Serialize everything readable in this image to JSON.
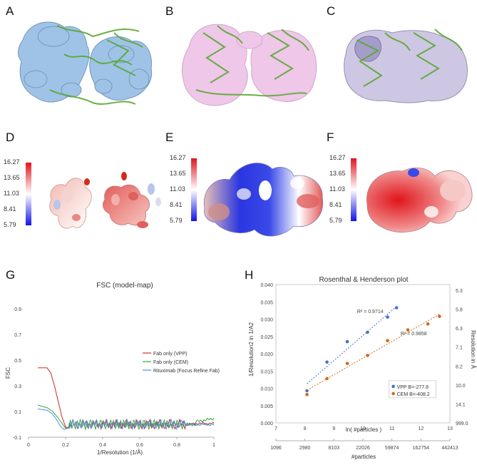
{
  "panels": {
    "a": "A",
    "b": "B",
    "c": "C",
    "d": "D",
    "e": "E",
    "f": "F",
    "g": "G",
    "h": "H"
  },
  "colorbar": {
    "ticks": [
      "16.27",
      "13.65",
      "11.03",
      "8.41",
      "5.79"
    ],
    "high_color": "#e0141c",
    "mid_color": "#ffffff",
    "low_color": "#1414e6"
  },
  "colors": {
    "map_blue": "#8fb9e3",
    "map_pink": "#e6a3dc",
    "map_lavender": "#b8b0d8",
    "ribbon_green": "#5aa832"
  },
  "chart_data": [
    {
      "type": "line",
      "title": "FSC (model-map)",
      "xlabel": "1/Resolution (1/Å)",
      "ylabel": "FSC",
      "xlim": [
        0,
        1
      ],
      "ylim": [
        -0.1,
        1.0
      ],
      "xticks": [
        "0",
        "0.2",
        "0.4",
        "0.6",
        "0.8",
        "1"
      ],
      "yticks": [
        "-0.1",
        "0.1",
        "0.3",
        "0.5",
        "0.7",
        "0.9"
      ],
      "legend_position": "right",
      "series": [
        {
          "name": "Fab only (VPP)",
          "color": "#d42a1e",
          "x": [
            0.05,
            0.1,
            0.12,
            0.14,
            0.16,
            0.18,
            0.2,
            0.22
          ],
          "y": [
            0.44,
            0.44,
            0.4,
            0.3,
            0.18,
            0.06,
            -0.02,
            -0.03
          ]
        },
        {
          "name": "Fab only (CEM)",
          "color": "#3aa63a",
          "x": [
            0.05,
            0.1,
            0.13,
            0.16,
            0.18,
            0.2,
            0.22
          ],
          "y": [
            0.15,
            0.13,
            0.1,
            0.05,
            0.01,
            -0.03,
            -0.02
          ]
        },
        {
          "name": "Rituximab (Focus Refine Fab)",
          "color": "#4a90e2",
          "x": [
            0.05,
            0.1,
            0.13,
            0.15,
            0.17,
            0.19,
            0.21
          ],
          "y": [
            0.12,
            0.11,
            0.08,
            0.04,
            -0.01,
            -0.04,
            -0.03
          ]
        }
      ]
    },
    {
      "type": "scatter",
      "title": "Rosenthal & Henderson plot",
      "xlabel": "ln( #particles )",
      "ylabel": "1/Resolution2 in 1/A2",
      "ylabel_right": "Resolution in Å",
      "xlabel_bottom": "#particles",
      "xlim": [
        7,
        13
      ],
      "ylim": [
        0,
        0.04
      ],
      "xticks": [
        "7",
        "8",
        "9",
        "10",
        "11",
        "12",
        "13"
      ],
      "yticks": [
        "0.000",
        "0.005",
        "0.010",
        "0.015",
        "0.020",
        "0.025",
        "0.030",
        "0.035",
        "0.040"
      ],
      "right_ticks": [
        "5.3",
        "5.8",
        "6.3",
        "7.1",
        "8.2",
        "10.0",
        "14.1",
        "999.0"
      ],
      "bottom_ticks": [
        "1096",
        "2980",
        "8103",
        "22026",
        "59874",
        "162754",
        "442413"
      ],
      "legend_position": "lower-right",
      "series": [
        {
          "name": "VPP B=-277.8",
          "color": "#4472c4",
          "r2": "R² = 0.9714",
          "x": [
            8.07,
            8.76,
            9.46,
            10.16,
            10.85,
            11.16
          ],
          "y": [
            0.0093,
            0.0176,
            0.0235,
            0.0262,
            0.0306,
            0.0333
          ]
        },
        {
          "name": "CEM B=-408.2",
          "color": "#d2691e",
          "r2": "R² = 0.9858",
          "x": [
            8.07,
            8.76,
            9.46,
            10.16,
            10.85,
            11.55,
            12.24,
            12.64
          ],
          "y": [
            0.0082,
            0.0128,
            0.0172,
            0.0195,
            0.0238,
            0.0269,
            0.0286,
            0.0308
          ]
        }
      ]
    }
  ]
}
